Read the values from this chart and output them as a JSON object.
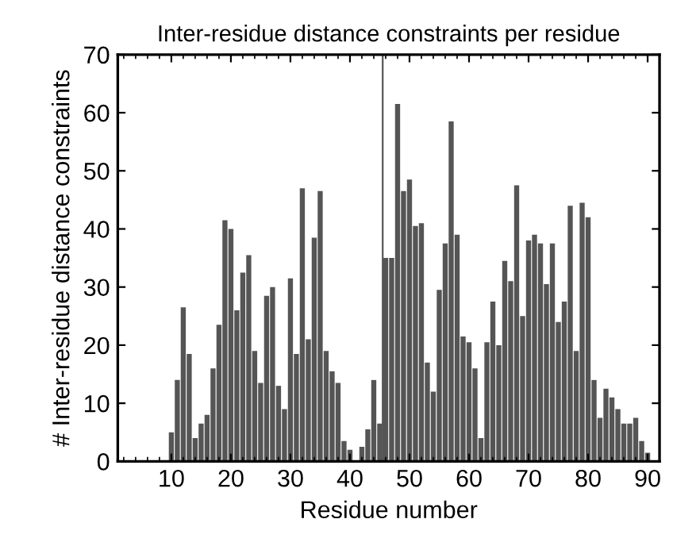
{
  "chart_data": {
    "type": "bar",
    "title": "Inter-residue distance constraints per residue",
    "xlabel": "Residue number",
    "ylabel": "# Inter-residue distance constraints",
    "x": [
      10,
      11,
      12,
      13,
      14,
      15,
      16,
      17,
      18,
      19,
      20,
      21,
      22,
      23,
      24,
      25,
      26,
      27,
      28,
      29,
      30,
      31,
      32,
      33,
      34,
      35,
      36,
      37,
      38,
      39,
      40,
      41,
      42,
      43,
      44,
      45,
      46,
      47,
      48,
      49,
      50,
      51,
      52,
      53,
      54,
      55,
      56,
      57,
      58,
      59,
      60,
      61,
      62,
      63,
      64,
      65,
      66,
      67,
      68,
      69,
      70,
      71,
      72,
      73,
      74,
      75,
      76,
      77,
      78,
      79,
      80,
      81,
      82,
      83,
      84,
      85,
      86,
      87,
      88,
      89,
      90
    ],
    "values": [
      5,
      14,
      26.5,
      18.5,
      4,
      6.5,
      8,
      16,
      23.5,
      41.5,
      40,
      26,
      32.5,
      35.5,
      19,
      13.5,
      28.5,
      30,
      13,
      9,
      31.5,
      18.5,
      47,
      21,
      38.5,
      46.5,
      19,
      15.5,
      13.5,
      3.5,
      2,
      0,
      2.5,
      5.5,
      14,
      6.5,
      35,
      35,
      61.5,
      46.5,
      48.5,
      40.5,
      41,
      17,
      12,
      29.5,
      37.5,
      58.5,
      39,
      21.5,
      20.5,
      16,
      4,
      20.5,
      27.5,
      20,
      34.5,
      31,
      47.5,
      25,
      38,
      39,
      37.5,
      30.5,
      37.5,
      24,
      27.5,
      44,
      19,
      44.5,
      42,
      14,
      7.5,
      12.5,
      11,
      9,
      6.5,
      6.5,
      7.5,
      3.5,
      1.5
    ],
    "color": "#555555",
    "xlim": [
      1,
      92
    ],
    "ylim": [
      0,
      70
    ],
    "xticks": [
      10,
      20,
      30,
      40,
      50,
      60,
      70,
      80,
      90
    ],
    "yticks": [
      0,
      10,
      20,
      30,
      40,
      50,
      60,
      70
    ],
    "ref_lines": [
      {
        "axis": "x",
        "value": 45.5,
        "color": "#555555"
      }
    ],
    "grid": false,
    "legend": false
  }
}
